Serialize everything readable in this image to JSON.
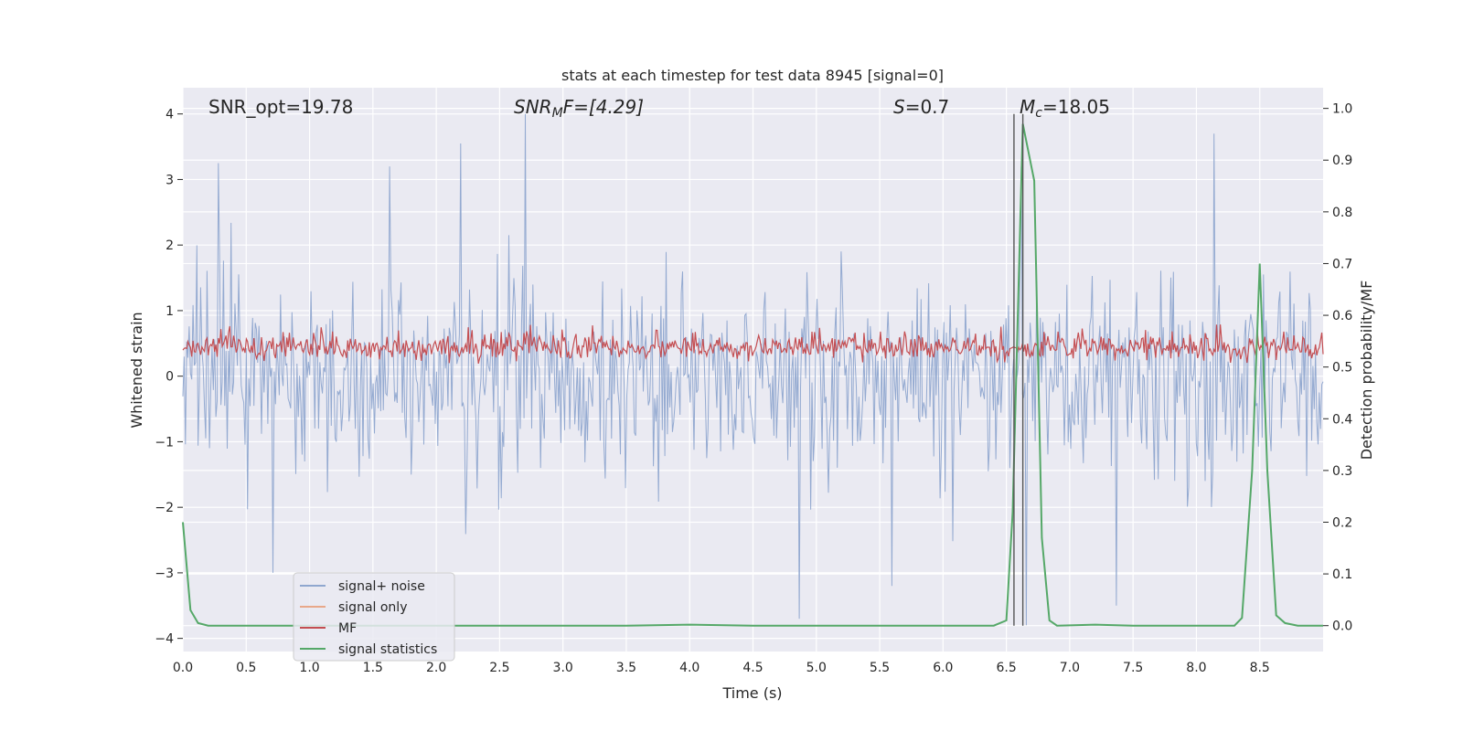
{
  "chart_data": {
    "type": "line",
    "title": "stats at each timestep for test data 8945 [signal=0]",
    "xlabel": "Time (s)",
    "ylabel": "Whitened strain",
    "ylabel_right": "Detection probability/MF",
    "xlim": [
      0.0,
      9.0
    ],
    "ylim": [
      -4.2,
      4.4
    ],
    "ylim_right": [
      -0.05,
      1.04
    ],
    "xticks": [
      0.0,
      0.5,
      1.0,
      1.5,
      2.0,
      2.5,
      3.0,
      3.5,
      4.0,
      4.5,
      5.0,
      5.5,
      6.0,
      6.5,
      7.0,
      7.5,
      8.0,
      8.5
    ],
    "xtick_labels": [
      "0.0",
      "0.5",
      "1.0",
      "1.5",
      "2.0",
      "2.5",
      "3.0",
      "3.5",
      "4.0",
      "4.5",
      "5.0",
      "5.5",
      "6.0",
      "6.5",
      "7.0",
      "7.5",
      "8.0",
      "8.5"
    ],
    "yticks": [
      4,
      3,
      2,
      1,
      0,
      -1,
      -2,
      -3,
      -4
    ],
    "ytick_labels": [
      "4",
      "3",
      "2",
      "1",
      "0",
      "−1",
      "−2",
      "−3",
      "−4"
    ],
    "yticks_right": [
      1.0,
      0.9,
      0.8,
      0.7,
      0.6,
      0.5,
      0.4,
      0.3,
      0.2,
      0.1,
      0.0
    ],
    "ytick_labels_right": [
      "1.0",
      "0.9",
      "0.8",
      "0.7",
      "0.6",
      "0.5",
      "0.4",
      "0.3",
      "0.2",
      "0.1",
      "0.0"
    ],
    "annotations": {
      "snr_opt": "SNR_opt=19.78",
      "snr_mf_main": "SNR",
      "snr_mf_sub": "M",
      "snr_mf_rest": "F=[4.29]",
      "s_main": "S",
      "s_rest": "=0.7",
      "mc_main": "M",
      "mc_sub": "c",
      "mc_rest": "=18.05"
    },
    "vertical_lines_x": [
      6.56,
      6.63
    ],
    "series": [
      {
        "name": "signal+ noise",
        "color": "#8fa7cf",
        "axis": "left",
        "description": "whitened strain noise, amplitude mostly within ±2.5, peaks up to about ±4",
        "samples": 900,
        "sigma": 0.75,
        "peaks": [
          {
            "x": 2.7,
            "y": 4.0
          },
          {
            "x": 2.19,
            "y": 3.55
          },
          {
            "x": 0.28,
            "y": 3.25
          },
          {
            "x": 8.14,
            "y": 3.7
          },
          {
            "x": 6.62,
            "y": 3.2
          },
          {
            "x": 1.63,
            "y": 3.2
          },
          {
            "x": 4.87,
            "y": -3.7
          },
          {
            "x": 6.66,
            "y": -3.8
          },
          {
            "x": 0.71,
            "y": -3.0
          },
          {
            "x": 5.6,
            "y": -3.2
          },
          {
            "x": 7.37,
            "y": -3.5
          }
        ]
      },
      {
        "name": "signal only",
        "color": "#e8a88a",
        "axis": "left",
        "values": []
      },
      {
        "name": "MF",
        "color": "#c44e52",
        "axis": "right",
        "description": "matched-filter output, approx 0.5-0.58 on the right axis (roughly 0 to 0.85 strain)",
        "samples": 900
      },
      {
        "name": "signal statistics",
        "color": "#55a868",
        "axis": "right",
        "x": [
          0.0,
          0.06,
          0.12,
          0.2,
          0.5,
          1.0,
          1.5,
          2.0,
          2.5,
          3.0,
          3.5,
          4.0,
          4.5,
          5.0,
          5.5,
          6.0,
          6.4,
          6.5,
          6.55,
          6.63,
          6.72,
          6.78,
          6.84,
          6.9,
          7.2,
          7.5,
          8.0,
          8.3,
          8.36,
          8.44,
          8.5,
          8.56,
          8.63,
          8.7,
          8.8,
          9.0
        ],
        "y": [
          0.2,
          0.03,
          0.005,
          0.0,
          0.0,
          0.0,
          0.0,
          0.0,
          0.0,
          0.0,
          0.0,
          0.002,
          0.0,
          0.0,
          0.0,
          0.0,
          0.0,
          0.01,
          0.22,
          0.97,
          0.86,
          0.17,
          0.01,
          0.0,
          0.002,
          0.0,
          0.0,
          0.0,
          0.015,
          0.3,
          0.7,
          0.3,
          0.02,
          0.005,
          0.0,
          0.0
        ]
      }
    ],
    "legend": {
      "placement": "lower-left",
      "entries": [
        {
          "label": "signal+ noise",
          "color": "#8fa7cf"
        },
        {
          "label": "signal only",
          "color": "#e8a88a"
        },
        {
          "label": "MF",
          "color": "#c44e52"
        },
        {
          "label": "signal statistics",
          "color": "#55a868"
        }
      ]
    }
  }
}
